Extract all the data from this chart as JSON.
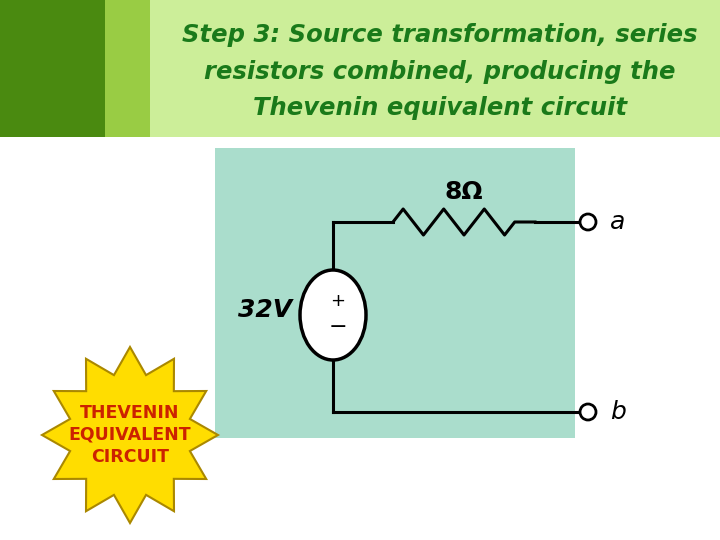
{
  "title_line1": "Step 3: Source transformation, series",
  "title_line2": "resistors combined, producing the",
  "title_line3": "Thevenin equivalent circuit",
  "title_color": "#1a7a1a",
  "title_fontsize": 17.5,
  "header_bg_color": "#ccee99",
  "header_left_color1": "#4a8a10",
  "header_left_color2": "#99cc44",
  "circuit_bg_color": "#aaddcc",
  "bg_color": "#ffffff",
  "resistor_label": "8Ω",
  "voltage_label": "32V",
  "terminal_a": "a",
  "terminal_b": "b",
  "plus_sign": "+",
  "minus_sign": "−",
  "star_text_line1": "THEVENIN",
  "star_text_line2": "EQUIVALENT",
  "star_text_line3": "CIRCUIT",
  "star_color": "#ffdd00",
  "star_edge_color": "#aa8800",
  "star_text_color": "#cc2200",
  "star_fontsize": 12.5,
  "wire_color": "#000000",
  "wire_lw": 2.2
}
